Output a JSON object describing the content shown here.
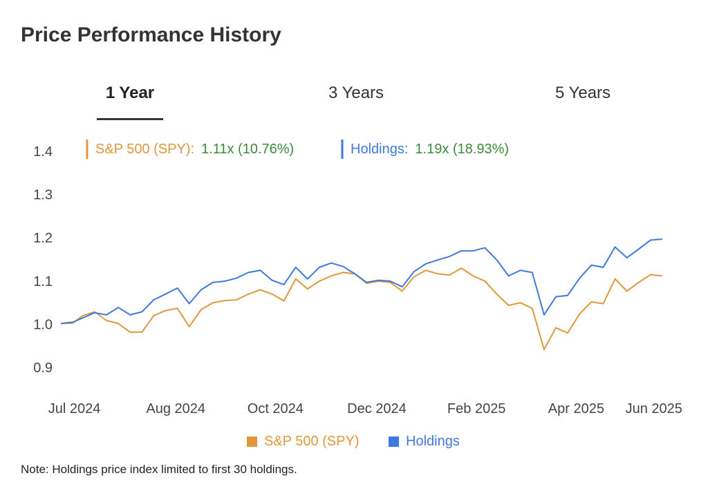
{
  "page": {
    "title": "Price Performance History",
    "note": "Note: Holdings price index limited to first 30 holdings."
  },
  "tabs": [
    {
      "label": "1 Year",
      "active": true
    },
    {
      "label": "3 Years",
      "active": false
    },
    {
      "label": "5 Years",
      "active": false
    }
  ],
  "summary": [
    {
      "name": "S&P 500 (SPY):",
      "value": "1.11x (10.76%)"
    },
    {
      "name": "Holdings:",
      "value": "1.19x (18.93%)"
    }
  ],
  "colors": {
    "spy": "#E0973A",
    "holdings": "#3F78DE",
    "summary_value": "#3D8A3A",
    "axis_text": "#444444"
  },
  "legend": [
    {
      "label": "S&P 500 (SPY)"
    },
    {
      "label": "Holdings"
    }
  ],
  "chart_data": {
    "type": "line",
    "title": "",
    "xlabel": "",
    "ylabel": "",
    "ylim": [
      0.86,
      1.45
    ],
    "yticks": [
      1.4,
      1.3,
      1.2,
      1.1,
      1.0,
      0.9
    ],
    "ytick_labels": [
      "1.4",
      "1.3",
      "1.2",
      "1.1",
      "1.0",
      "0.9"
    ],
    "xlim": [
      "2024-06-20",
      "2025-06-13"
    ],
    "xticks": [
      "2024-06-28",
      "2024-08-27",
      "2024-10-25",
      "2024-12-24",
      "2025-02-21",
      "2025-04-21",
      "2025-06-06"
    ],
    "xtick_labels": [
      "Jul 2024",
      "Aug 2024",
      "Oct 2024",
      "Dec 2024",
      "Feb 2025",
      "Apr 2025",
      "Jun 2025"
    ],
    "legend_position": "bottom",
    "grid": false,
    "x": [
      "2024-06-20",
      "2024-06-27",
      "2024-07-03",
      "2024-07-10",
      "2024-07-17",
      "2024-07-24",
      "2024-07-31",
      "2024-08-07",
      "2024-08-14",
      "2024-08-21",
      "2024-08-28",
      "2024-09-04",
      "2024-09-11",
      "2024-09-18",
      "2024-09-25",
      "2024-10-02",
      "2024-10-09",
      "2024-10-16",
      "2024-10-23",
      "2024-10-30",
      "2024-11-06",
      "2024-11-13",
      "2024-11-20",
      "2024-11-27",
      "2024-12-04",
      "2024-12-11",
      "2024-12-18",
      "2024-12-25",
      "2025-01-01",
      "2025-01-08",
      "2025-01-15",
      "2025-01-22",
      "2025-01-29",
      "2025-02-05",
      "2025-02-12",
      "2025-02-19",
      "2025-02-26",
      "2025-03-05",
      "2025-03-12",
      "2025-03-19",
      "2025-03-26",
      "2025-04-02",
      "2025-04-09",
      "2025-04-16",
      "2025-04-23",
      "2025-04-30",
      "2025-05-07",
      "2025-05-14",
      "2025-05-21",
      "2025-05-28",
      "2025-06-04",
      "2025-06-11"
    ],
    "series": [
      {
        "name": "S&P 500 (SPY)",
        "values": [
          1.0,
          1.001,
          1.018,
          1.027,
          1.007,
          1.0,
          0.98,
          0.98,
          1.018,
          1.03,
          1.035,
          0.993,
          1.032,
          1.048,
          1.053,
          1.055,
          1.068,
          1.078,
          1.068,
          1.052,
          1.103,
          1.08,
          1.098,
          1.11,
          1.118,
          1.115,
          1.093,
          1.098,
          1.095,
          1.075,
          1.108,
          1.123,
          1.115,
          1.112,
          1.128,
          1.11,
          1.098,
          1.068,
          1.042,
          1.048,
          1.035,
          0.94,
          0.99,
          0.978,
          1.022,
          1.05,
          1.046,
          1.103,
          1.075,
          1.095,
          1.113,
          1.11
        ]
      },
      {
        "name": "Holdings",
        "values": [
          1.0,
          1.003,
          1.013,
          1.025,
          1.02,
          1.037,
          1.02,
          1.027,
          1.055,
          1.068,
          1.082,
          1.046,
          1.078,
          1.095,
          1.098,
          1.105,
          1.118,
          1.123,
          1.1,
          1.09,
          1.13,
          1.103,
          1.13,
          1.14,
          1.132,
          1.115,
          1.095,
          1.1,
          1.098,
          1.085,
          1.12,
          1.138,
          1.147,
          1.155,
          1.168,
          1.168,
          1.175,
          1.147,
          1.11,
          1.123,
          1.118,
          1.02,
          1.062,
          1.065,
          1.105,
          1.135,
          1.13,
          1.177,
          1.152,
          1.172,
          1.193,
          1.195
        ]
      }
    ]
  }
}
